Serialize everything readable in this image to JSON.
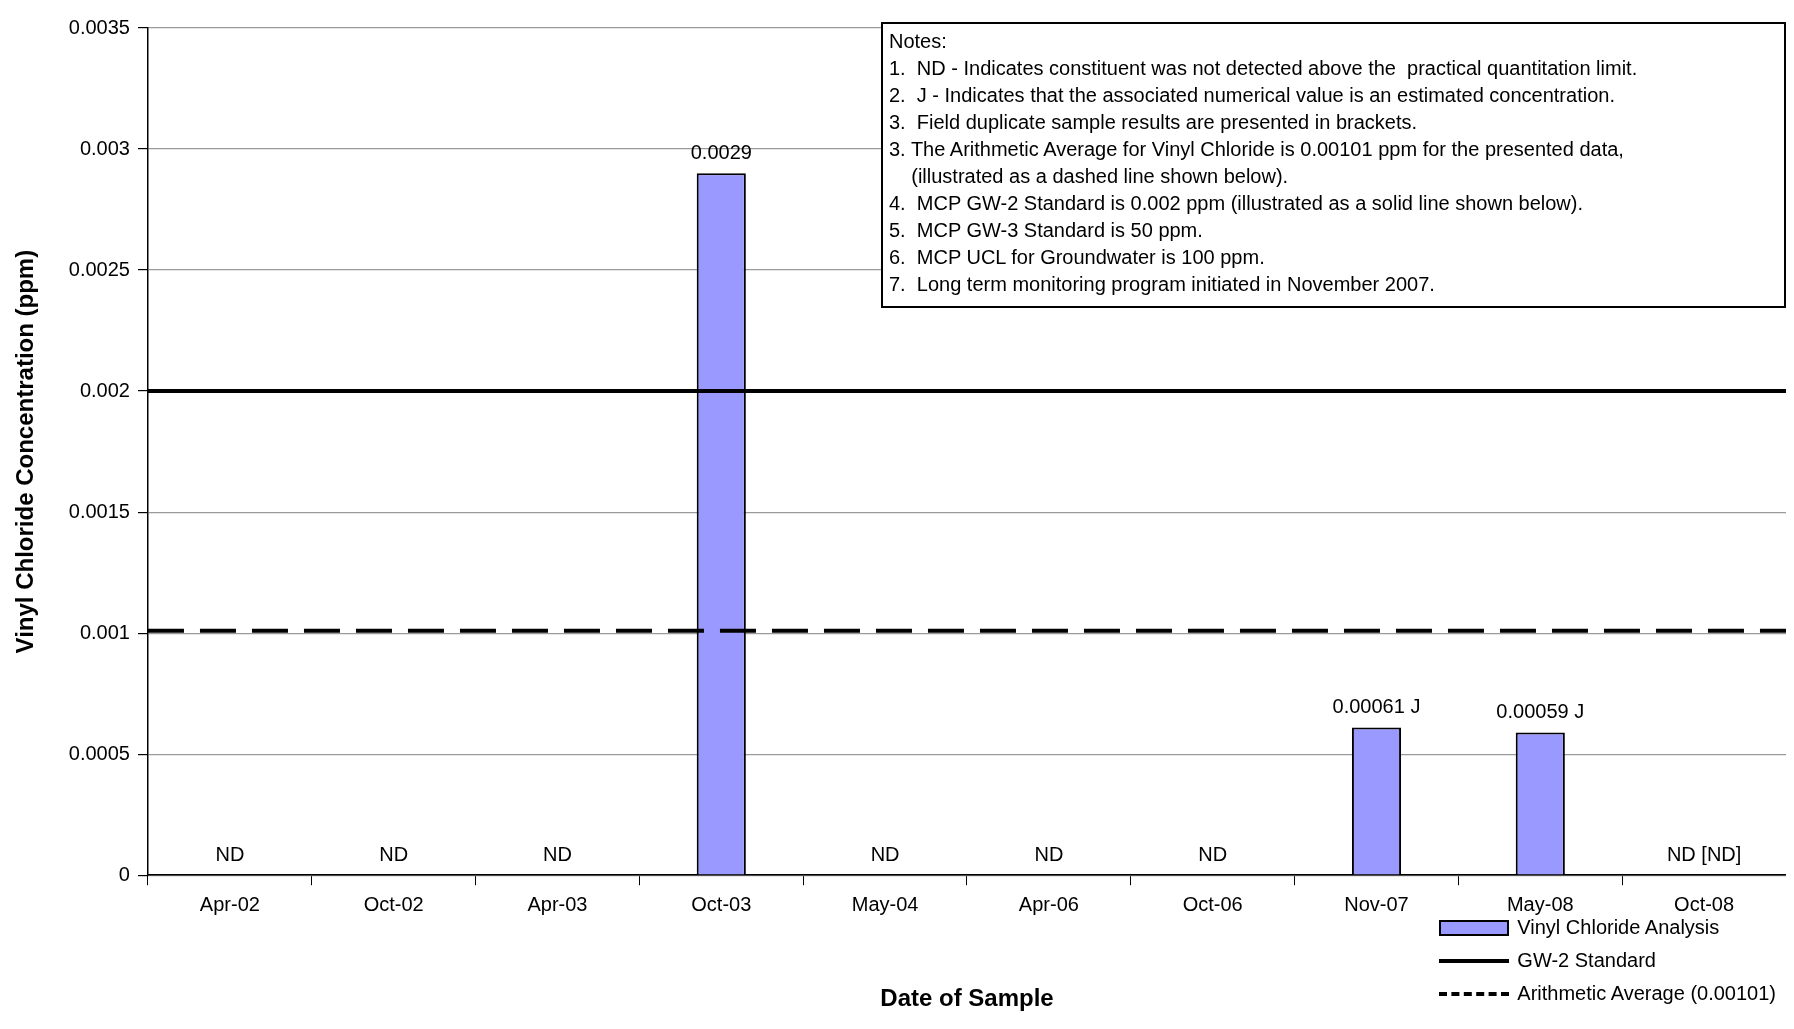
{
  "chart_data": {
    "type": "bar",
    "xlabel": "Date of Sample",
    "ylabel": "Vinyl Chloride Concentration (ppm)",
    "categories": [
      "Apr-02",
      "Oct-02",
      "Apr-03",
      "Oct-03",
      "May-04",
      "Apr-06",
      "Oct-06",
      "Nov-07",
      "May-08",
      "Oct-08"
    ],
    "series": [
      {
        "name": "Vinyl Chloride Analysis",
        "color": "#9999ff",
        "values": [
          null,
          null,
          null,
          0.0029,
          null,
          null,
          null,
          0.00061,
          0.00059,
          null
        ],
        "value_labels": [
          "ND",
          "ND",
          "ND",
          "0.0029",
          "ND",
          "ND",
          "ND",
          "0.00061 J",
          "0.00059 J",
          "ND [ND]"
        ]
      }
    ],
    "ylim": [
      0,
      0.0035
    ],
    "yticks": [
      0,
      0.0005,
      0.001,
      0.0015,
      0.002,
      0.0025,
      0.003,
      0.0035
    ],
    "grid": "y",
    "legend": "bottom right",
    "ref_lines": [
      {
        "axis": "y",
        "value": 0.002,
        "label": "GW-2 Standard",
        "color": "#000000",
        "line_style": "solid"
      },
      {
        "axis": "y",
        "value": 0.00101,
        "label": "Arithmetic Average (0.00101)",
        "color": "#000000",
        "line_style": "dashed"
      }
    ],
    "annotations": [
      "Notes:",
      "1.  ND - Indicates constituent was not detected above the  practical quantitation limit.",
      "2.  J - Indicates that the associated numerical value is an estimated concentration.",
      "3.  Field duplicate sample results are presented in brackets.",
      "3. The Arithmetic Average for Vinyl Chloride is 0.00101 ppm for the presented data,",
      "    (illustrated as a dashed line shown below).",
      "4.  MCP GW-2 Standard is 0.002 ppm (illustrated as a solid line shown below).",
      "5.  MCP GW-3 Standard is 50 ppm.",
      "6.  MCP UCL for Groundwater is 100 ppm.",
      "7.  Long term monitoring program initiated in November 2007."
    ]
  }
}
